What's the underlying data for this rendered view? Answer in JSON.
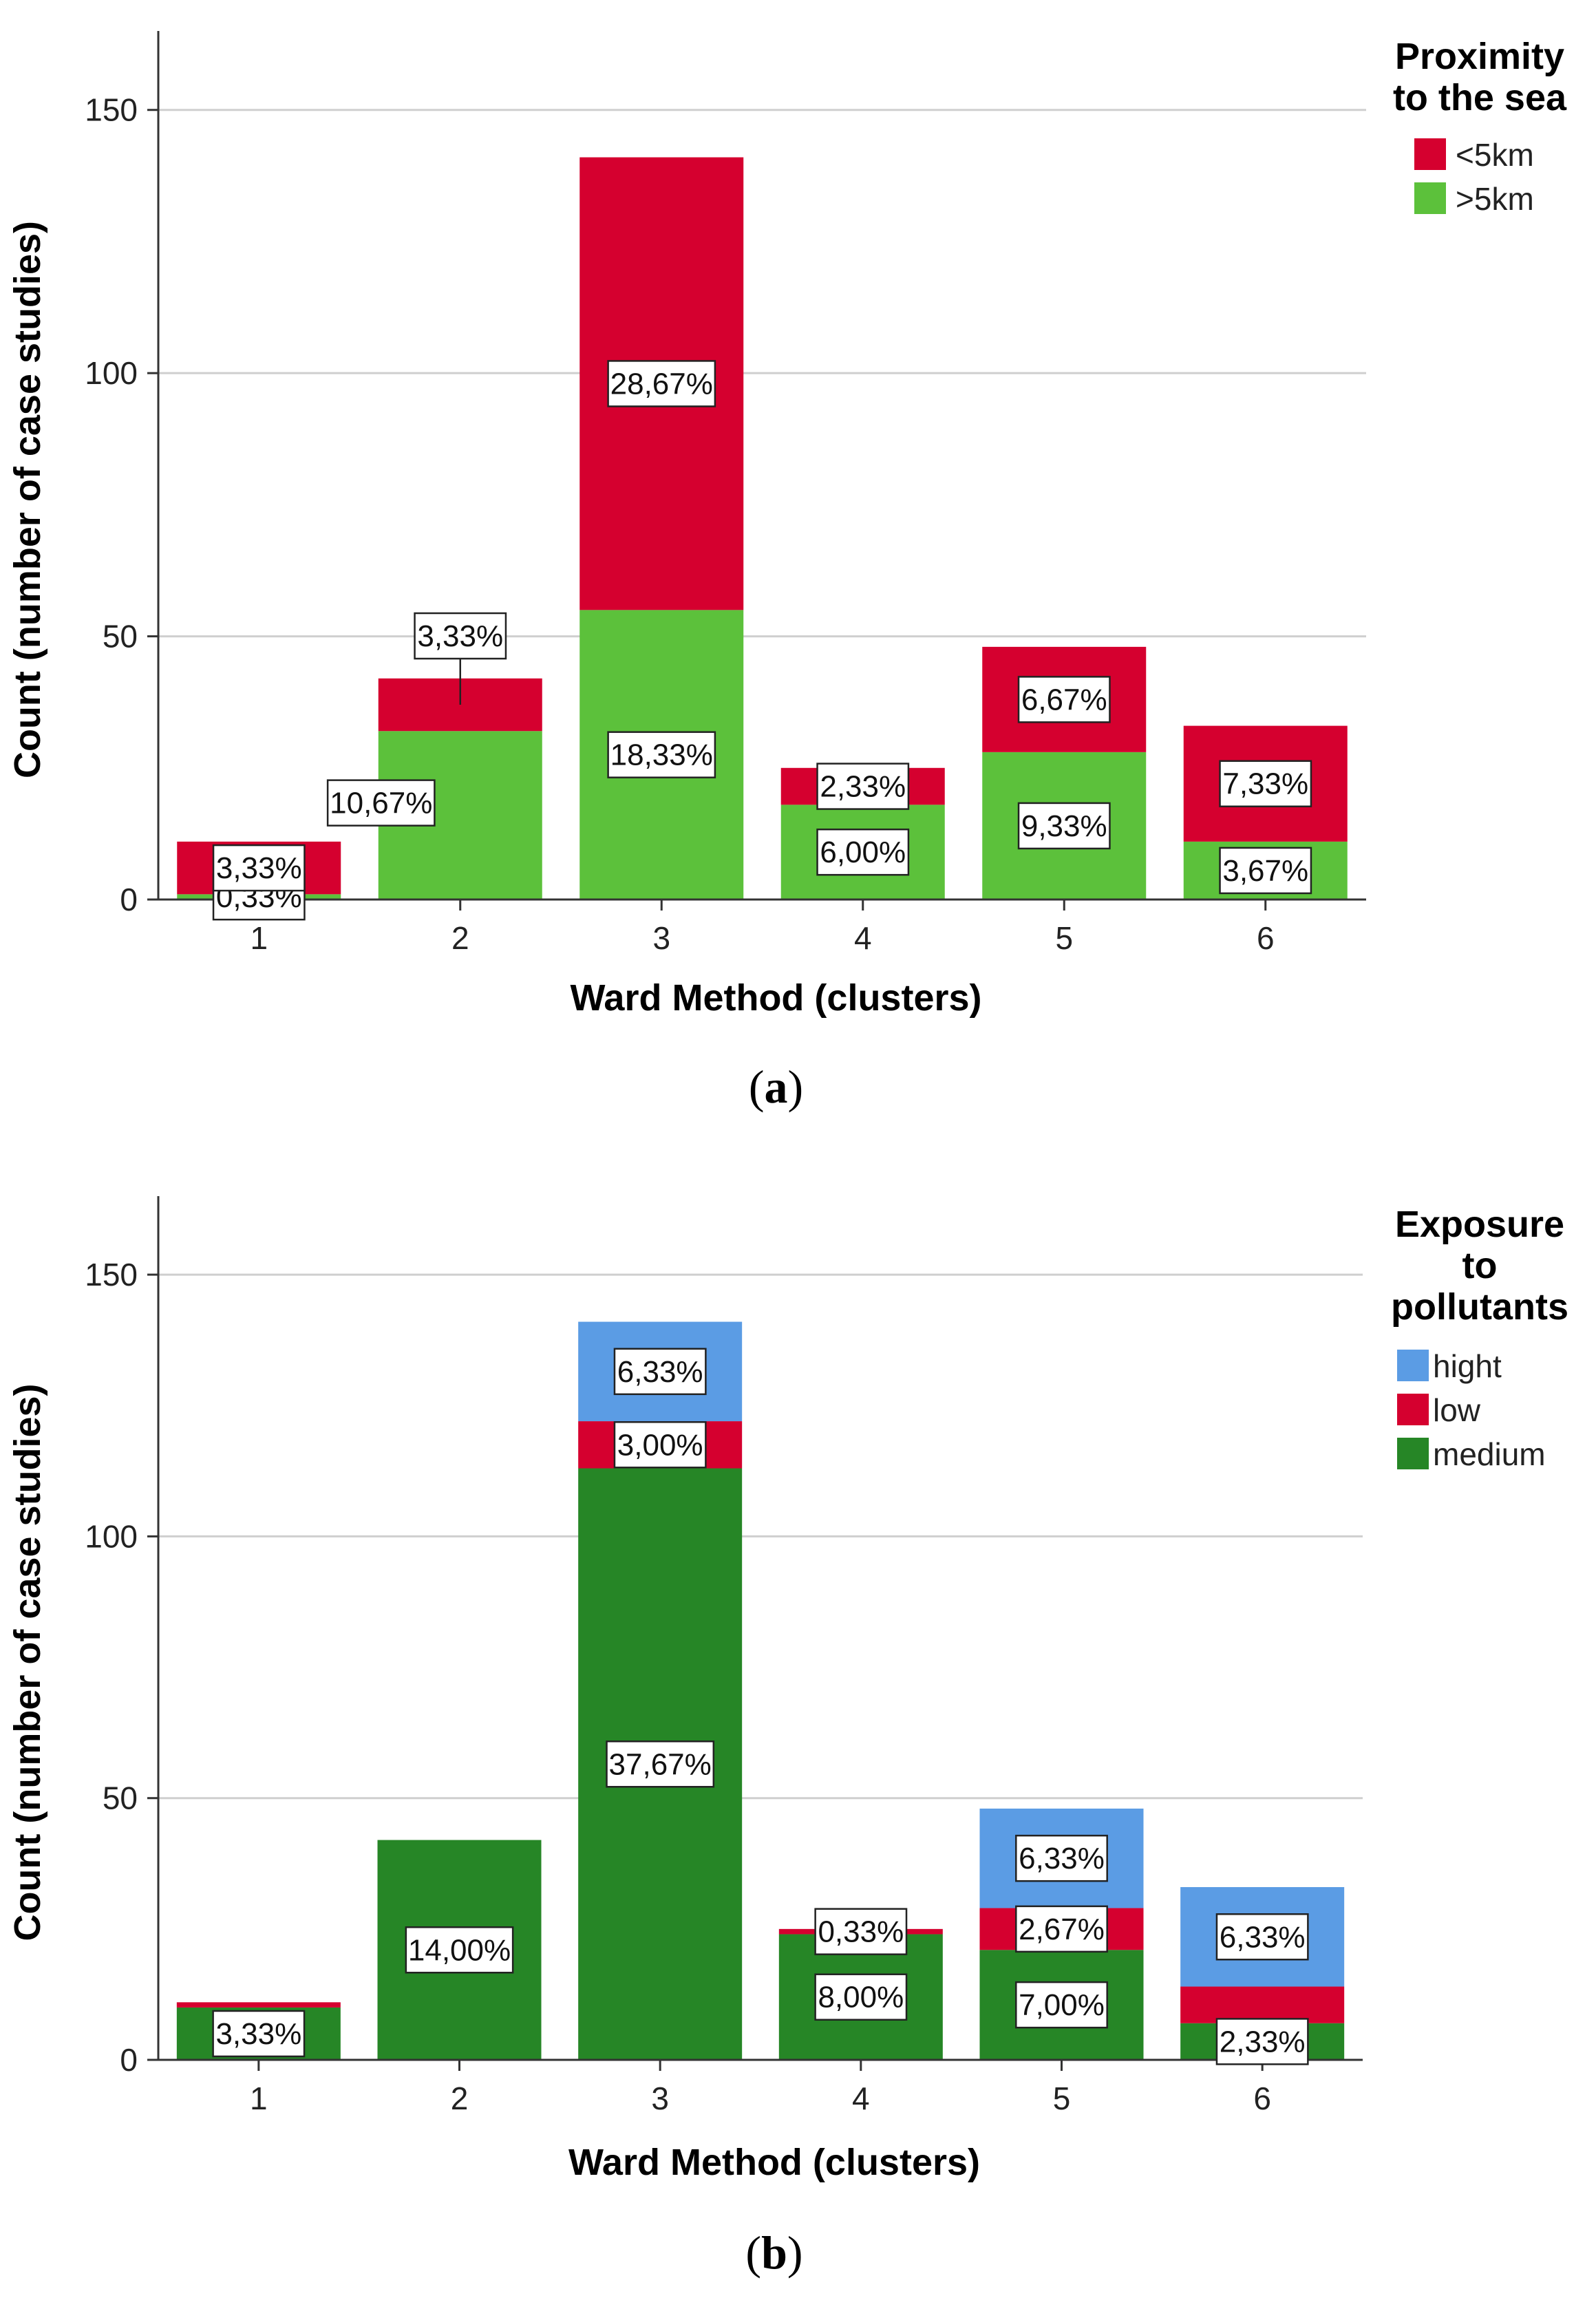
{
  "chart_data": [
    {
      "id": "a",
      "type": "bar",
      "stacked": true,
      "categories": [
        "1",
        "2",
        "3",
        "4",
        "5",
        "6"
      ],
      "xlabel": "Ward Method (clusters)",
      "ylabel": "Count (number of case studies)",
      "ylim": [
        0,
        165
      ],
      "yticks": [
        0,
        50,
        100,
        150
      ],
      "grid": true,
      "caption_letter": "a",
      "legend_title_lines": [
        "Proximity",
        "to the sea"
      ],
      "legend_position": "top-right",
      "series": [
        {
          "name": ">5km",
          "color": "#5cc13b",
          "values": [
            1,
            32,
            55,
            18,
            28,
            11
          ],
          "labels": [
            "0,33%",
            "10,67%",
            "18,33%",
            "6,00%",
            "9,33%",
            "3,67%"
          ]
        },
        {
          "name": "<5km",
          "color": "#d5002f",
          "values": [
            10,
            10,
            86,
            7,
            20,
            22
          ],
          "labels": [
            "3,33%",
            "3,33%",
            "28,67%",
            "2,33%",
            "6,67%",
            "7,33%"
          ]
        }
      ],
      "legend_order": [
        "<5km",
        ">5km"
      ]
    },
    {
      "id": "b",
      "type": "bar",
      "stacked": true,
      "categories": [
        "1",
        "2",
        "3",
        "4",
        "5",
        "6"
      ],
      "xlabel": "Ward Method (clusters)",
      "ylabel": "Count (number of case studies)",
      "ylim": [
        0,
        165
      ],
      "yticks": [
        0,
        50,
        100,
        150
      ],
      "grid": true,
      "caption_letter": "b",
      "legend_title_lines": [
        "Exposure",
        "to",
        "pollutants"
      ],
      "legend_position": "top-right",
      "series": [
        {
          "name": "medium",
          "color": "#268626",
          "values": [
            10,
            42,
            113,
            24,
            21,
            7
          ],
          "labels": [
            "3,33%",
            "14,00%",
            "37,67%",
            "8,00%",
            "7,00%",
            "2,33%"
          ]
        },
        {
          "name": "low",
          "color": "#d5002f",
          "values": [
            1,
            0,
            9,
            1,
            8,
            7
          ],
          "labels": [
            "",
            "",
            "3,00%",
            "0,33%",
            "2,67%",
            ""
          ]
        },
        {
          "name": "hight",
          "color": "#5b9ce4",
          "values": [
            0,
            0,
            19,
            0,
            19,
            19
          ],
          "labels": [
            "",
            "",
            "6,33%",
            "",
            "6,33%",
            "6,33%"
          ]
        }
      ],
      "legend_order": [
        "hight",
        "low",
        "medium"
      ]
    }
  ]
}
